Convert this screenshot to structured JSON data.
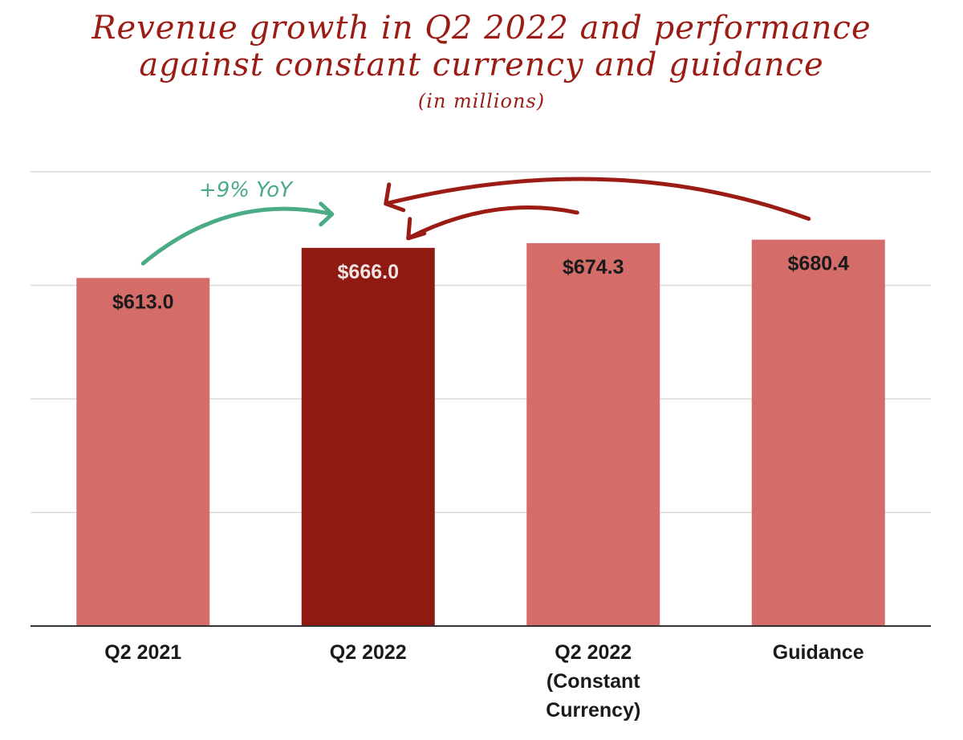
{
  "chart_data": {
    "type": "bar",
    "title": "Revenue growth in Q2 2022 and performance against constant currency and guidance",
    "title_lines": [
      "Revenue growth in Q2 2022 and performance",
      "against constant currency and guidance"
    ],
    "subtitle": "(in millions)",
    "categories": [
      [
        "Q2 2021"
      ],
      [
        "Q2 2022"
      ],
      [
        "Q2 2022",
        "(Constant",
        "Currency)"
      ],
      [
        "Guidance"
      ]
    ],
    "values": [
      613.0,
      666.0,
      674.3,
      680.4
    ],
    "data_labels": [
      "$613.0",
      "$666.0",
      "$674.3",
      "$680.4"
    ],
    "highlight_index": 1,
    "ylim": [
      0,
      800
    ],
    "grid": true,
    "xlabel": "",
    "ylabel": "",
    "annotations": [
      {
        "text": "+9% YoY",
        "from": "Q2 2021",
        "to": "Q2 2022"
      }
    ],
    "colors": {
      "bar": "#d46d6a",
      "highlight": "#8e1a12",
      "title": "#9b1c14",
      "annotation": "#4aab85",
      "arrow": "#9b1c14",
      "grid": "#d9d9d9",
      "axis": "#333333",
      "label_dark": "#1a1a1a",
      "label_light": "#f3e4e4"
    }
  }
}
